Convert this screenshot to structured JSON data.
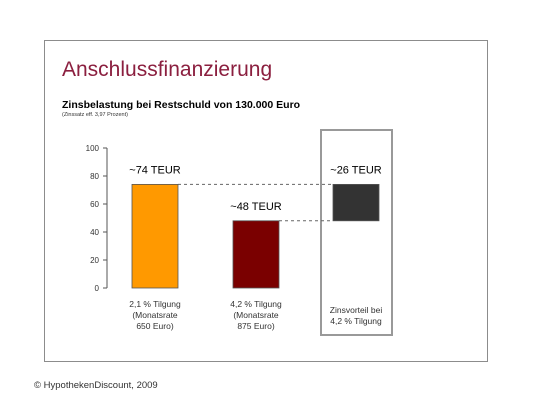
{
  "header": {
    "title": "Anschlussfinanzierung",
    "subtitle": "Zinsbelastung bei Restschuld von 130.000 Euro",
    "note": "(Zinssatz eff. 3,97 Prozent)"
  },
  "footer": {
    "copyright": "© HypothekenDiscount, 2009"
  },
  "colors": {
    "title": "#8b1f3f",
    "bar1": "#ff9900",
    "bar2": "#7a0000",
    "bar3": "#333333"
  },
  "chart_data": {
    "type": "bar",
    "ylim": [
      0,
      100
    ],
    "yticks": [
      0,
      20,
      40,
      60,
      80,
      100
    ],
    "grid": false,
    "bars": [
      {
        "label_lines": [
          "2,1 % Tilgung",
          "(Monatsrate",
          "650 Euro)"
        ],
        "value": 74,
        "base": 0,
        "value_label": "~74 TEUR",
        "color": "#ff9900"
      },
      {
        "label_lines": [
          "4,2 % Tilgung",
          "(Monatsrate",
          "875 Euro)"
        ],
        "value": 48,
        "base": 0,
        "value_label": "~48 TEUR",
        "color": "#7a0000"
      },
      {
        "label_lines": [
          "Zinsvorteil bei",
          "4,2 % Tilgung"
        ],
        "value": 26,
        "base": 48,
        "value_label": "~26 TEUR",
        "color": "#333333",
        "highlighted": true
      }
    ],
    "connectors": [
      74,
      48
    ]
  }
}
